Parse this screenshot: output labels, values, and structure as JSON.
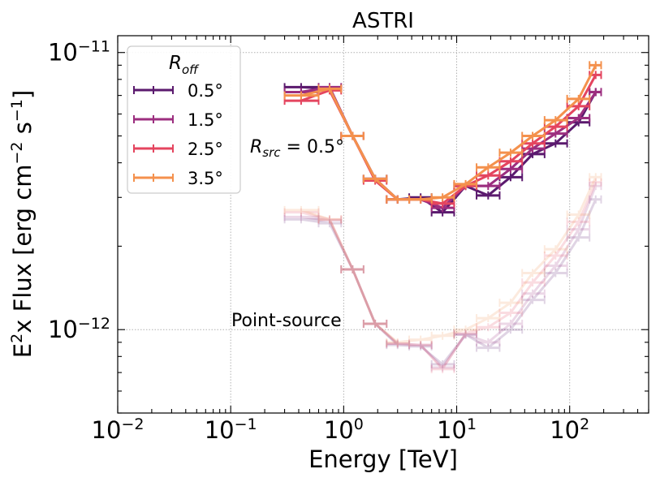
{
  "chart_data": {
    "type": "line",
    "title": "ASTRI",
    "xlabel": "Energy [TeV]",
    "ylabel": "E²x Flux [erg cm⁻² s⁻¹]",
    "xscale": "log",
    "yscale": "log",
    "xlim": [
      0.01,
      500
    ],
    "ylim": [
      5e-13,
      1.15e-11
    ],
    "grid": true,
    "x_ticks": [
      {
        "value": 0.01,
        "base": "10",
        "exp": "−2"
      },
      {
        "value": 0.1,
        "base": "10",
        "exp": "−1"
      },
      {
        "value": 1,
        "base": "10",
        "exp": "0"
      },
      {
        "value": 10,
        "base": "10",
        "exp": "1"
      },
      {
        "value": 100,
        "base": "10",
        "exp": "2"
      }
    ],
    "y_ticks": [
      {
        "value": 1e-12,
        "base": "10",
        "exp": "−12"
      },
      {
        "value": 1e-11,
        "base": "10",
        "exp": "−11"
      }
    ],
    "legend": {
      "title": "R",
      "title_sub": "off",
      "placement": "upper-left",
      "entries": [
        "0.5°",
        "1.5°",
        "2.5°",
        "3.5°"
      ]
    },
    "bin_edges": [
      0.3,
      0.6,
      0.95,
      1.5,
      2.4,
      3.8,
      6,
      9.5,
      15,
      24,
      38,
      60,
      95,
      150,
      190
    ],
    "series": [
      {
        "name": "0.5°",
        "group": "extended",
        "color": "#5b1a6e",
        "x": [
          0.42,
          0.75,
          1.2,
          1.9,
          3.0,
          4.8,
          7.5,
          12,
          19,
          30,
          47,
          75,
          120,
          170
        ],
        "y": [
          7.5e-12,
          7.4e-12,
          5e-12,
          3.5e-12,
          2.95e-12,
          3e-12,
          2.65e-12,
          3.3e-12,
          3.05e-12,
          3.55e-12,
          4.3e-12,
          4.7e-12,
          5.6e-12,
          7.2e-12
        ]
      },
      {
        "name": "1.5°",
        "group": "extended",
        "color": "#9c2e7f",
        "x": [
          0.42,
          0.75,
          1.2,
          1.9,
          3.0,
          4.8,
          7.5,
          12,
          19,
          30,
          47,
          75,
          120,
          170
        ],
        "y": [
          7.2e-12,
          7.5e-12,
          5e-12,
          3.5e-12,
          2.95e-12,
          2.95e-12,
          2.75e-12,
          3.3e-12,
          3.3e-12,
          3.8e-12,
          4.5e-12,
          5.1e-12,
          5.8e-12,
          7.2e-12
        ]
      },
      {
        "name": "2.5°",
        "group": "extended",
        "color": "#e4455f",
        "x": [
          0.42,
          0.75,
          1.2,
          1.9,
          3.0,
          4.8,
          7.5,
          12,
          19,
          30,
          47,
          75,
          120,
          170
        ],
        "y": [
          6.7e-12,
          7.3e-12,
          5e-12,
          3.45e-12,
          2.95e-12,
          2.95e-12,
          2.85e-12,
          3.3e-12,
          3.6e-12,
          4.05e-12,
          4.7e-12,
          5.4e-12,
          6.4e-12,
          8.3e-12
        ]
      },
      {
        "name": "3.5°",
        "group": "extended",
        "color": "#f4914d",
        "x": [
          0.42,
          0.75,
          1.2,
          1.9,
          3.0,
          4.8,
          7.5,
          12,
          19,
          30,
          47,
          75,
          120,
          170
        ],
        "y": [
          7e-12,
          7.4e-12,
          5e-12,
          3.5e-12,
          2.95e-12,
          2.95e-12,
          3e-12,
          3.35e-12,
          3.85e-12,
          4.35e-12,
          5e-12,
          5.7e-12,
          6.8e-12,
          9e-12
        ]
      },
      {
        "name": "0.5°",
        "group": "point-source",
        "color": "#5b1a6e",
        "x": [
          0.42,
          0.75,
          1.2,
          1.9,
          3.0,
          4.8,
          7.5,
          12,
          19,
          30,
          47,
          75,
          120,
          170
        ],
        "y": [
          2.5e-12,
          2.42e-12,
          1.65e-12,
          1.05e-12,
          8.8e-13,
          8.7e-13,
          7.5e-13,
          9.6e-13,
          8.6e-13,
          1e-12,
          1.28e-12,
          1.6e-12,
          2.15e-12,
          2.95e-12
        ]
      },
      {
        "name": "1.5°",
        "group": "point-source",
        "color": "#9c2e7f",
        "x": [
          0.42,
          0.75,
          1.2,
          1.9,
          3.0,
          4.8,
          7.5,
          12,
          19,
          30,
          47,
          75,
          120,
          170
        ],
        "y": [
          2.55e-12,
          2.48e-12,
          1.65e-12,
          1.05e-12,
          8.9e-13,
          8.8e-13,
          7.3e-13,
          9.6e-13,
          9e-13,
          1.05e-12,
          1.35e-12,
          1.7e-12,
          2.3e-12,
          3.3e-12
        ]
      },
      {
        "name": "2.5°",
        "group": "point-source",
        "color": "#e4455f",
        "x": [
          0.42,
          0.75,
          1.2,
          1.9,
          3.0,
          4.8,
          7.5,
          12,
          19,
          30,
          47,
          75,
          120,
          170
        ],
        "y": [
          2.65e-12,
          2.5e-12,
          1.65e-12,
          1.05e-12,
          8.9e-13,
          8.8e-13,
          7.2e-13,
          9.7e-13,
          1.02e-12,
          1.15e-12,
          1.48e-12,
          1.85e-12,
          2.45e-12,
          3.4e-12
        ]
      },
      {
        "name": "3.5°",
        "group": "point-source",
        "color": "#f4914d",
        "x": [
          0.42,
          0.75,
          1.2,
          1.9,
          3.0,
          4.8,
          7.5,
          12,
          19,
          30,
          47,
          75,
          120,
          170
        ],
        "y": [
          2.7e-12,
          2.5e-12,
          1.65e-12,
          1.05e-12,
          9e-13,
          9.2e-13,
          9.5e-13,
          1e-12,
          1.1e-12,
          1.25e-12,
          1.6e-12,
          1.95e-12,
          2.6e-12,
          3.55e-12
        ]
      }
    ],
    "annotations": {
      "rsrc_main": "R",
      "rsrc_sub": "src",
      "rsrc_rest": " = 0.5°",
      "point_source": "Point-source"
    }
  }
}
